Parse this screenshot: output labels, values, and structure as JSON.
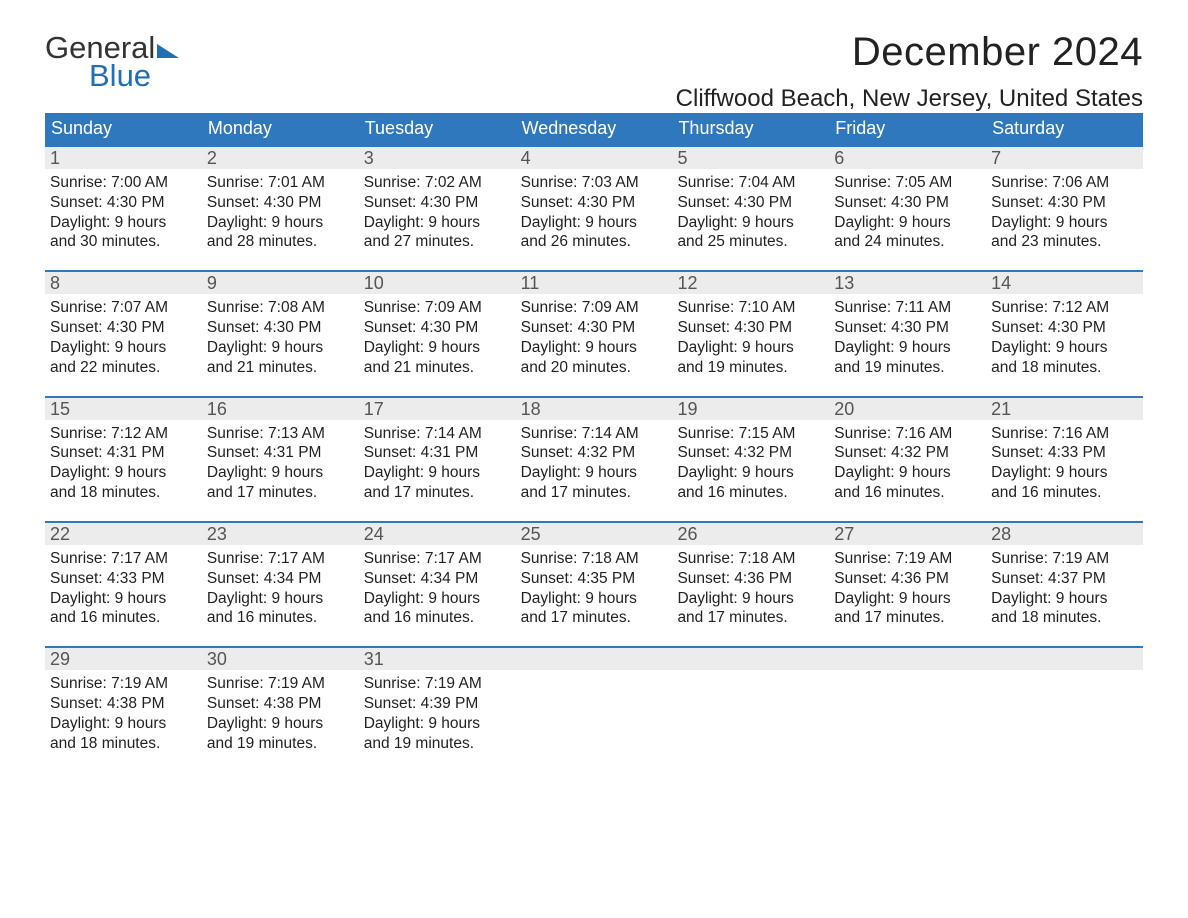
{
  "brand": {
    "word1": "General",
    "word2": "Blue",
    "brand_color": "#1f6fb2"
  },
  "title": "December 2024",
  "location": "Cliffwood Beach, New Jersey, United States",
  "colors": {
    "header_bg": "#2f78bd",
    "week_border": "#2f78bd",
    "daynum_bg": "#ececec"
  },
  "weekdays": [
    "Sunday",
    "Monday",
    "Tuesday",
    "Wednesday",
    "Thursday",
    "Friday",
    "Saturday"
  ],
  "weeks": [
    [
      {
        "n": "1",
        "sunrise": "7:00 AM",
        "sunset": "4:30 PM",
        "dl1": "9 hours",
        "dl2": "and 30 minutes."
      },
      {
        "n": "2",
        "sunrise": "7:01 AM",
        "sunset": "4:30 PM",
        "dl1": "9 hours",
        "dl2": "and 28 minutes."
      },
      {
        "n": "3",
        "sunrise": "7:02 AM",
        "sunset": "4:30 PM",
        "dl1": "9 hours",
        "dl2": "and 27 minutes."
      },
      {
        "n": "4",
        "sunrise": "7:03 AM",
        "sunset": "4:30 PM",
        "dl1": "9 hours",
        "dl2": "and 26 minutes."
      },
      {
        "n": "5",
        "sunrise": "7:04 AM",
        "sunset": "4:30 PM",
        "dl1": "9 hours",
        "dl2": "and 25 minutes."
      },
      {
        "n": "6",
        "sunrise": "7:05 AM",
        "sunset": "4:30 PM",
        "dl1": "9 hours",
        "dl2": "and 24 minutes."
      },
      {
        "n": "7",
        "sunrise": "7:06 AM",
        "sunset": "4:30 PM",
        "dl1": "9 hours",
        "dl2": "and 23 minutes."
      }
    ],
    [
      {
        "n": "8",
        "sunrise": "7:07 AM",
        "sunset": "4:30 PM",
        "dl1": "9 hours",
        "dl2": "and 22 minutes."
      },
      {
        "n": "9",
        "sunrise": "7:08 AM",
        "sunset": "4:30 PM",
        "dl1": "9 hours",
        "dl2": "and 21 minutes."
      },
      {
        "n": "10",
        "sunrise": "7:09 AM",
        "sunset": "4:30 PM",
        "dl1": "9 hours",
        "dl2": "and 21 minutes."
      },
      {
        "n": "11",
        "sunrise": "7:09 AM",
        "sunset": "4:30 PM",
        "dl1": "9 hours",
        "dl2": "and 20 minutes."
      },
      {
        "n": "12",
        "sunrise": "7:10 AM",
        "sunset": "4:30 PM",
        "dl1": "9 hours",
        "dl2": "and 19 minutes."
      },
      {
        "n": "13",
        "sunrise": "7:11 AM",
        "sunset": "4:30 PM",
        "dl1": "9 hours",
        "dl2": "and 19 minutes."
      },
      {
        "n": "14",
        "sunrise": "7:12 AM",
        "sunset": "4:30 PM",
        "dl1": "9 hours",
        "dl2": "and 18 minutes."
      }
    ],
    [
      {
        "n": "15",
        "sunrise": "7:12 AM",
        "sunset": "4:31 PM",
        "dl1": "9 hours",
        "dl2": "and 18 minutes."
      },
      {
        "n": "16",
        "sunrise": "7:13 AM",
        "sunset": "4:31 PM",
        "dl1": "9 hours",
        "dl2": "and 17 minutes."
      },
      {
        "n": "17",
        "sunrise": "7:14 AM",
        "sunset": "4:31 PM",
        "dl1": "9 hours",
        "dl2": "and 17 minutes."
      },
      {
        "n": "18",
        "sunrise": "7:14 AM",
        "sunset": "4:32 PM",
        "dl1": "9 hours",
        "dl2": "and 17 minutes."
      },
      {
        "n": "19",
        "sunrise": "7:15 AM",
        "sunset": "4:32 PM",
        "dl1": "9 hours",
        "dl2": "and 16 minutes."
      },
      {
        "n": "20",
        "sunrise": "7:16 AM",
        "sunset": "4:32 PM",
        "dl1": "9 hours",
        "dl2": "and 16 minutes."
      },
      {
        "n": "21",
        "sunrise": "7:16 AM",
        "sunset": "4:33 PM",
        "dl1": "9 hours",
        "dl2": "and 16 minutes."
      }
    ],
    [
      {
        "n": "22",
        "sunrise": "7:17 AM",
        "sunset": "4:33 PM",
        "dl1": "9 hours",
        "dl2": "and 16 minutes."
      },
      {
        "n": "23",
        "sunrise": "7:17 AM",
        "sunset": "4:34 PM",
        "dl1": "9 hours",
        "dl2": "and 16 minutes."
      },
      {
        "n": "24",
        "sunrise": "7:17 AM",
        "sunset": "4:34 PM",
        "dl1": "9 hours",
        "dl2": "and 16 minutes."
      },
      {
        "n": "25",
        "sunrise": "7:18 AM",
        "sunset": "4:35 PM",
        "dl1": "9 hours",
        "dl2": "and 17 minutes."
      },
      {
        "n": "26",
        "sunrise": "7:18 AM",
        "sunset": "4:36 PM",
        "dl1": "9 hours",
        "dl2": "and 17 minutes."
      },
      {
        "n": "27",
        "sunrise": "7:19 AM",
        "sunset": "4:36 PM",
        "dl1": "9 hours",
        "dl2": "and 17 minutes."
      },
      {
        "n": "28",
        "sunrise": "7:19 AM",
        "sunset": "4:37 PM",
        "dl1": "9 hours",
        "dl2": "and 18 minutes."
      }
    ],
    [
      {
        "n": "29",
        "sunrise": "7:19 AM",
        "sunset": "4:38 PM",
        "dl1": "9 hours",
        "dl2": "and 18 minutes."
      },
      {
        "n": "30",
        "sunrise": "7:19 AM",
        "sunset": "4:38 PM",
        "dl1": "9 hours",
        "dl2": "and 19 minutes."
      },
      {
        "n": "31",
        "sunrise": "7:19 AM",
        "sunset": "4:39 PM",
        "dl1": "9 hours",
        "dl2": "and 19 minutes."
      },
      {
        "empty": true
      },
      {
        "empty": true
      },
      {
        "empty": true
      },
      {
        "empty": true
      }
    ]
  ],
  "labels": {
    "sunrise": "Sunrise: ",
    "sunset": "Sunset: ",
    "daylight": "Daylight: "
  }
}
